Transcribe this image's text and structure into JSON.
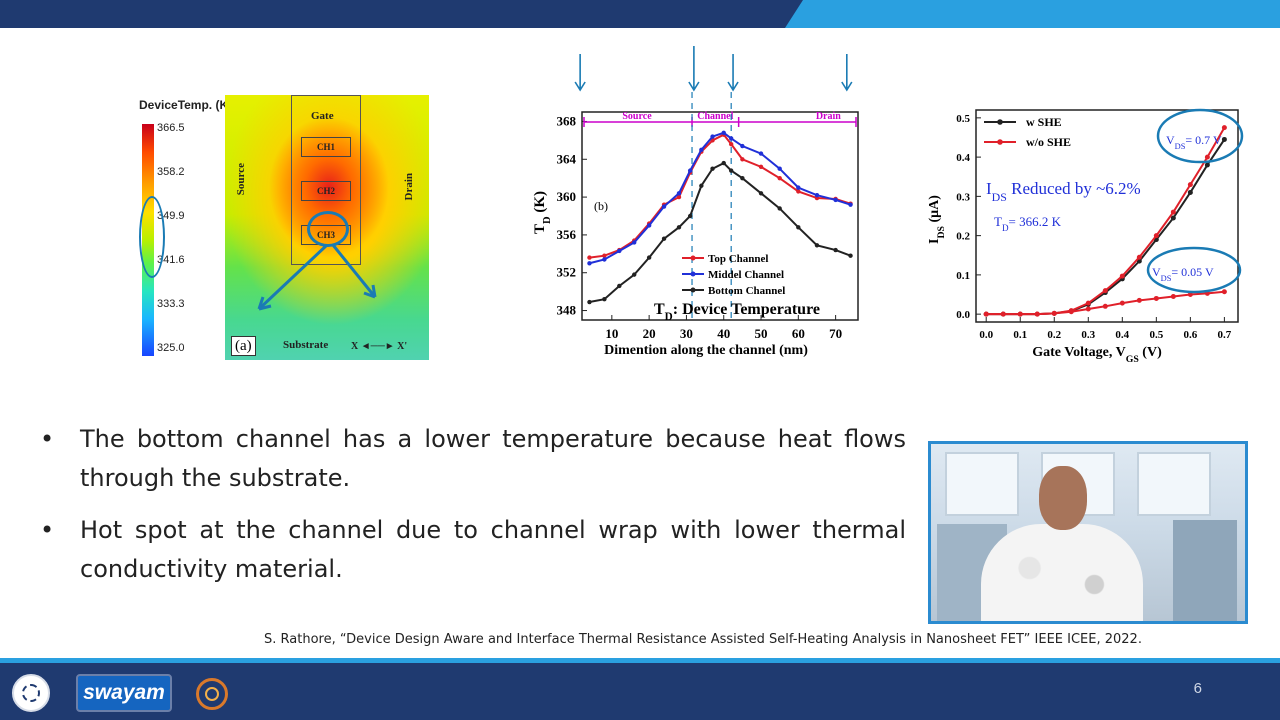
{
  "slide": {
    "page_number": "6"
  },
  "fig_a": {
    "colorbar_title": "DeviceTemp. (K)",
    "colorbar_ticks": [
      "366.5",
      "358.2",
      "349.9",
      "341.6",
      "333.3",
      "325.0"
    ],
    "labels": {
      "gate": "Gate",
      "source": "Source",
      "drain": "Drain",
      "ch1": "CH1",
      "ch2": "CH2",
      "ch3": "CH3",
      "substrate": "Substrate",
      "axis": "X ◄──► X'",
      "panel": "(a)"
    }
  },
  "chart_data": [
    {
      "type": "line",
      "panel_label": "(b)",
      "ylabel": "T_D (K)",
      "xlabel": "Dimention along the channel (nm)",
      "annotation": "T_D: Device Temperature",
      "regions": [
        "Source",
        "Channel",
        "Drain"
      ],
      "xlim": [
        2,
        76
      ],
      "ylim": [
        347,
        369
      ],
      "x_ticks": [
        10,
        20,
        30,
        40,
        50,
        60,
        70
      ],
      "y_ticks": [
        348,
        352,
        356,
        360,
        364,
        368
      ],
      "series": [
        {
          "name": "Top Channel",
          "color": "#e0202a",
          "x": [
            4,
            8,
            12,
            16,
            20,
            24,
            28,
            31,
            34,
            37,
            40,
            42,
            45,
            50,
            55,
            60,
            65,
            70,
            74
          ],
          "y": [
            353.6,
            353.8,
            354.4,
            355.4,
            357.2,
            359.2,
            360.0,
            362.6,
            364.8,
            366.0,
            366.6,
            365.6,
            364.0,
            363.2,
            362.0,
            360.6,
            359.9,
            359.8,
            359.3
          ]
        },
        {
          "name": "Middel Channel",
          "color": "#2030d8",
          "x": [
            4,
            8,
            12,
            16,
            20,
            24,
            28,
            31,
            34,
            37,
            40,
            42,
            45,
            50,
            55,
            60,
            65,
            70,
            74
          ],
          "y": [
            353.0,
            353.4,
            354.3,
            355.2,
            357.0,
            359.0,
            360.4,
            362.8,
            365.0,
            366.4,
            366.8,
            366.2,
            365.4,
            364.6,
            363.0,
            361.0,
            360.2,
            359.7,
            359.2
          ]
        },
        {
          "name": "Bottom Channel",
          "color": "#222222",
          "x": [
            4,
            8,
            12,
            16,
            20,
            24,
            28,
            31,
            34,
            37,
            40,
            42,
            45,
            50,
            55,
            60,
            65,
            70,
            74
          ],
          "y": [
            348.9,
            349.2,
            350.6,
            351.8,
            353.6,
            355.6,
            356.8,
            358.0,
            361.2,
            363.0,
            363.6,
            362.8,
            362.0,
            360.4,
            358.8,
            356.8,
            354.9,
            354.4,
            353.8
          ]
        }
      ]
    },
    {
      "type": "line",
      "ylabel": "I_DS (μA)",
      "xlabel": "Gate Voltage, V_GS (V)",
      "xlim": [
        -0.03,
        0.74
      ],
      "ylim": [
        -0.02,
        0.52
      ],
      "x_ticks": [
        "0.0",
        "0.1",
        "0.2",
        "0.3",
        "0.4",
        "0.5",
        "0.6",
        "0.7"
      ],
      "y_ticks": [
        "0.0",
        "0.1",
        "0.2",
        "0.3",
        "0.4",
        "0.5"
      ],
      "annotations": [
        "V_DS= 0.7 V",
        "V_DS= 0.05 V",
        "I_DS Reduced by ~6.2%",
        "T_D= 366.2 K"
      ],
      "series": [
        {
          "name": "w SHE",
          "color": "#222222",
          "x": [
            0.0,
            0.05,
            0.1,
            0.15,
            0.2,
            0.25,
            0.3,
            0.35,
            0.4,
            0.45,
            0.5,
            0.55,
            0.6,
            0.65,
            0.7
          ],
          "y": [
            0.0,
            0.0,
            0.0,
            0.0,
            0.002,
            0.008,
            0.025,
            0.055,
            0.09,
            0.135,
            0.19,
            0.245,
            0.31,
            0.38,
            0.445
          ]
        },
        {
          "name": "w/o SHE",
          "color": "#e0202a",
          "x": [
            0.0,
            0.05,
            0.1,
            0.15,
            0.2,
            0.25,
            0.3,
            0.35,
            0.4,
            0.45,
            0.5,
            0.55,
            0.6,
            0.65,
            0.7
          ],
          "y": [
            0.0,
            0.0,
            0.0,
            0.0,
            0.002,
            0.009,
            0.028,
            0.06,
            0.097,
            0.145,
            0.2,
            0.26,
            0.33,
            0.4,
            0.475
          ]
        },
        {
          "name": "V_DS = 0.05 V",
          "color": "#e0202a",
          "x": [
            0.0,
            0.05,
            0.1,
            0.15,
            0.2,
            0.25,
            0.3,
            0.35,
            0.4,
            0.45,
            0.5,
            0.55,
            0.6,
            0.65,
            0.7
          ],
          "y": [
            0.0,
            0.0,
            0.0,
            0.0,
            0.002,
            0.006,
            0.013,
            0.02,
            0.028,
            0.035,
            0.04,
            0.045,
            0.05,
            0.053,
            0.057
          ]
        }
      ]
    }
  ],
  "bullets": [
    "The bottom channel has a lower temperature because heat flows through the substrate.",
    "Hot spot at the channel due to channel wrap with lower thermal conductivity material."
  ],
  "citation": "S. Rathore, “Device Design Aware and Interface Thermal Resistance Assisted Self-Heating Analysis in Nanosheet FET” IEEE ICEE, 2022.",
  "footer": {
    "swayam_label": "swayam"
  }
}
